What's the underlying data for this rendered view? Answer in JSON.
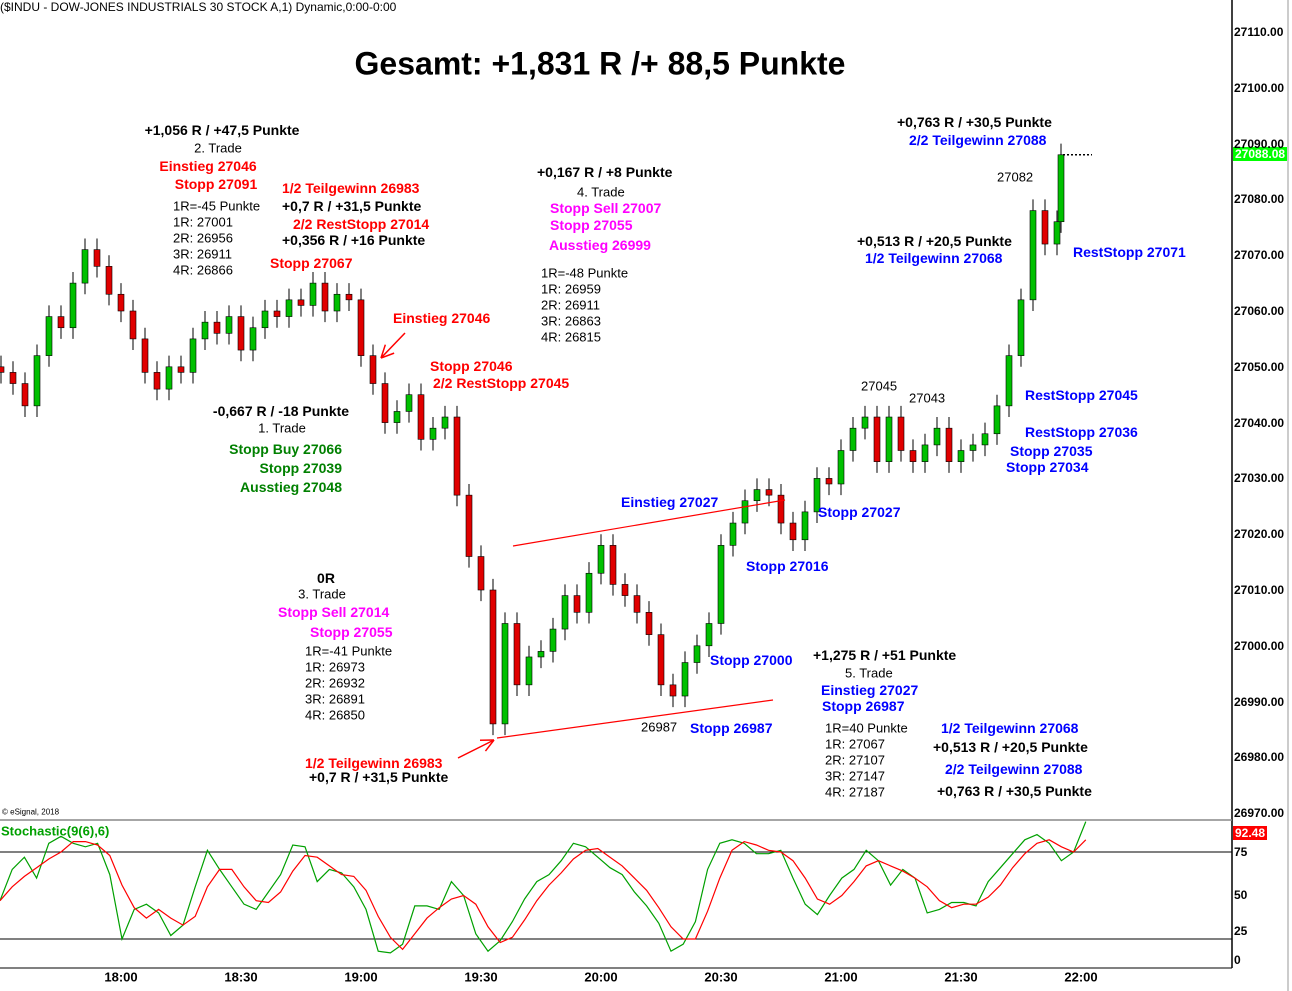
{
  "header": "($INDU - DOW-JONES INDUSTRIALS 30 STOCK A,1) Dynamic,0:00-0:00",
  "title": "Gesamt: +1,831 R /+ 88,5 Punkte",
  "copyright": "© eSignal, 2018",
  "colors": {
    "up": "#00c000",
    "down": "#e00000",
    "red": "#ff0000",
    "blue": "#0000ff",
    "green": "#008000",
    "magenta": "#ff00ff",
    "black": "#000000",
    "stoch_k": "#00a000",
    "stoch_d": "#ff0000",
    "price_badge": "#00ff00",
    "stoch_badge": "#ff0000"
  },
  "chart_data": [
    {
      "type": "candlestick",
      "interval_minutes": 3,
      "start_time": "17:30",
      "close": [
        27049,
        27047,
        27043,
        27052,
        27059,
        27057,
        27065,
        27071,
        27068,
        27063,
        27060,
        27055,
        27049,
        27046,
        27050,
        27049,
        27055,
        27058,
        27056,
        27059,
        27053,
        27057,
        27060,
        27059,
        27062,
        27061,
        27065,
        27060,
        27063,
        27062,
        27052,
        27047,
        27040,
        27042,
        27045,
        27037,
        27039,
        27041,
        27027,
        27016,
        27010,
        26986,
        27004,
        26993,
        26998,
        26999,
        27003,
        27009,
        27006,
        27013,
        27018,
        27011,
        27009,
        27006,
        27002,
        26993,
        26991,
        26997,
        27000,
        27004,
        27018,
        27022,
        27026,
        27028,
        27027,
        27022,
        27019,
        27024,
        27030,
        27029,
        27035,
        27039,
        27041,
        27033,
        27041,
        27035,
        27033,
        27036,
        27039,
        27033,
        27035,
        27036,
        27038,
        27043,
        27052,
        27062,
        27078,
        27072,
        27076,
        27088
      ],
      "last_price": "27088.08",
      "y_ticks": [
        "27110.00",
        "27100.00",
        "27090.00",
        "27080.00",
        "27070.00",
        "27060.00",
        "27050.00",
        "27040.00",
        "27030.00",
        "27020.00",
        "27010.00",
        "27000.00",
        "26990.00",
        "26980.00",
        "26970.00"
      ],
      "ylim": [
        26970,
        27110
      ],
      "x_ticks": [
        "18:00",
        "18:30",
        "19:00",
        "19:30",
        "20:00",
        "20:30",
        "21:00",
        "21:30",
        "22:00"
      ],
      "trendlines": [
        {
          "from": [
            "19:38",
            27019
          ],
          "to": [
            "20:46",
            27027
          ]
        },
        {
          "from": [
            "19:34",
            26984
          ],
          "to": [
            "20:43",
            26991
          ]
        }
      ],
      "annotations": [
        {
          "text": "+1,056 R / +47,5 Punkte",
          "color": "black"
        },
        {
          "text": "2. Trade",
          "color": "black"
        },
        {
          "text": "Einstieg 27046",
          "color": "red"
        },
        {
          "text": "Stopp 27091",
          "color": "red"
        },
        {
          "text": "1R=-45 Punkte",
          "color": "black"
        },
        {
          "text": "1R: 27001",
          "color": "black"
        },
        {
          "text": "2R: 26956",
          "color": "black"
        },
        {
          "text": "3R: 26911",
          "color": "black"
        },
        {
          "text": "4R: 26866",
          "color": "black"
        },
        {
          "text": "1/2 Teilgewinn 26983",
          "color": "red"
        },
        {
          "text": "+0,7 R / +31,5 Punkte",
          "color": "black"
        },
        {
          "text": "2/2 RestStopp 27014",
          "color": "red"
        },
        {
          "text": "+0,356 R / +16 Punkte",
          "color": "black"
        },
        {
          "text": "Stopp 27067",
          "color": "red"
        },
        {
          "text": "Einstieg 27046",
          "color": "red"
        },
        {
          "text": "Stopp 27046",
          "color": "red"
        },
        {
          "text": "2/2 RestStopp 27045",
          "color": "red"
        },
        {
          "text": "-0,667 R / -18 Punkte",
          "color": "black"
        },
        {
          "text": "1. Trade",
          "color": "black"
        },
        {
          "text": "Stopp Buy 27066",
          "color": "green"
        },
        {
          "text": "Stopp 27039",
          "color": "green"
        },
        {
          "text": "Ausstieg 27048",
          "color": "green"
        },
        {
          "text": "0R",
          "color": "black"
        },
        {
          "text": "3. Trade",
          "color": "black"
        },
        {
          "text": "Stopp Sell 27014",
          "color": "magenta"
        },
        {
          "text": "Stopp 27055",
          "color": "magenta"
        },
        {
          "text": "1R=-41 Punkte",
          "color": "black"
        },
        {
          "text": "1R: 26973",
          "color": "black"
        },
        {
          "text": "2R: 26932",
          "color": "black"
        },
        {
          "text": "3R: 26891",
          "color": "black"
        },
        {
          "text": "4R: 26850",
          "color": "black"
        },
        {
          "text": "1/2 Teilgewinn 26983",
          "color": "red"
        },
        {
          "text": "+0,7 R / +31,5 Punkte",
          "color": "black"
        },
        {
          "text": "+0,167 R / +8 Punkte",
          "color": "black"
        },
        {
          "text": "4. Trade",
          "color": "black"
        },
        {
          "text": "Stopp Sell 27007",
          "color": "magenta"
        },
        {
          "text": "Stopp 27055",
          "color": "magenta"
        },
        {
          "text": "Ausstieg 26999",
          "color": "magenta"
        },
        {
          "text": "1R=-48 Punkte",
          "color": "black"
        },
        {
          "text": "1R: 26959",
          "color": "black"
        },
        {
          "text": "2R: 26911",
          "color": "black"
        },
        {
          "text": "3R: 26863",
          "color": "black"
        },
        {
          "text": "4R: 26815",
          "color": "black"
        },
        {
          "text": "Einstieg 27027",
          "color": "blue"
        },
        {
          "text": "Stopp 27027",
          "color": "blue"
        },
        {
          "text": "Stopp 27016",
          "color": "blue"
        },
        {
          "text": "Stopp 27000",
          "color": "blue"
        },
        {
          "text": "26987",
          "color": "black"
        },
        {
          "text": "Stopp 26987",
          "color": "blue"
        },
        {
          "text": "+1,275 R / +51 Punkte",
          "color": "black"
        },
        {
          "text": "5. Trade",
          "color": "black"
        },
        {
          "text": "Einstieg 27027",
          "color": "blue"
        },
        {
          "text": "Stopp 26987",
          "color": "blue"
        },
        {
          "text": "1R=40 Punkte",
          "color": "black"
        },
        {
          "text": "1R: 27067",
          "color": "black"
        },
        {
          "text": "2R: 27107",
          "color": "black"
        },
        {
          "text": "3R: 27147",
          "color": "black"
        },
        {
          "text": "4R: 27187",
          "color": "black"
        },
        {
          "text": "1/2 Teilgewinn 27068",
          "color": "blue"
        },
        {
          "text": "+0,513 R / +20,5 Punkte",
          "color": "black"
        },
        {
          "text": "2/2 Teilgewinn 27088",
          "color": "blue"
        },
        {
          "text": "+0,763 R / +30,5 Punkte",
          "color": "black"
        },
        {
          "text": "27045",
          "color": "black"
        },
        {
          "text": "27043",
          "color": "black"
        },
        {
          "text": "RestStopp 27045",
          "color": "blue"
        },
        {
          "text": "RestStopp 27036",
          "color": "blue"
        },
        {
          "text": "Stopp 27035",
          "color": "blue"
        },
        {
          "text": "Stopp 27034",
          "color": "blue"
        },
        {
          "text": "+0,513 R / +20,5 Punkte",
          "color": "black"
        },
        {
          "text": "1/2 Teilgewinn 27068",
          "color": "blue"
        },
        {
          "text": "RestStopp 27071",
          "color": "blue"
        },
        {
          "text": "27082",
          "color": "black"
        },
        {
          "text": "+0,763 R / +30,5 Punkte",
          "color": "black"
        },
        {
          "text": "2/2 Teilgewinn 27088",
          "color": "blue"
        }
      ]
    },
    {
      "type": "line",
      "title": "Stochastic(9(6),6)",
      "levels": [
        75,
        25
      ],
      "y_ticks": [
        "75",
        "50",
        "25",
        "0"
      ],
      "ylim": [
        0,
        100
      ],
      "last_value": "92.48",
      "series": [
        {
          "values": [
            47,
            65,
            72,
            60,
            80,
            84,
            80,
            78,
            80,
            62,
            25,
            42,
            45,
            40,
            27,
            33,
            55,
            76,
            65,
            55,
            45,
            42,
            52,
            62,
            79,
            78,
            58,
            65,
            63,
            55,
            42,
            18,
            17,
            22,
            44,
            44,
            42,
            58,
            50,
            28,
            18,
            24,
            35,
            48,
            58,
            62,
            70,
            80,
            78,
            72,
            66,
            62,
            52,
            44,
            34,
            18,
            22,
            35,
            65,
            80,
            82,
            80,
            74,
            74,
            76,
            60,
            45,
            39,
            50,
            60,
            65,
            76,
            70,
            56,
            65,
            60,
            40,
            42,
            46,
            46,
            44,
            58,
            66,
            74,
            82,
            85,
            80,
            70,
            75,
            92.48
          ]
        },
        {
          "values": [
            47,
            55,
            61,
            66,
            71,
            75,
            81,
            81,
            79,
            73,
            56,
            43,
            37,
            42,
            37,
            33,
            38,
            55,
            65,
            65,
            55,
            47,
            46,
            52,
            64,
            73,
            72,
            67,
            62,
            61,
            53,
            38,
            26,
            19,
            28,
            37,
            43,
            48,
            50,
            45,
            32,
            23,
            26,
            36,
            47,
            56,
            63,
            71,
            76,
            77,
            72,
            67,
            60,
            53,
            43,
            32,
            25,
            25,
            41,
            60,
            76,
            81,
            79,
            76,
            75,
            70,
            60,
            48,
            45,
            50,
            58,
            67,
            70,
            67,
            64,
            60,
            55,
            47,
            43,
            45,
            45,
            49,
            56,
            66,
            74,
            80,
            82,
            78,
            75,
            82
          ]
        }
      ]
    }
  ]
}
